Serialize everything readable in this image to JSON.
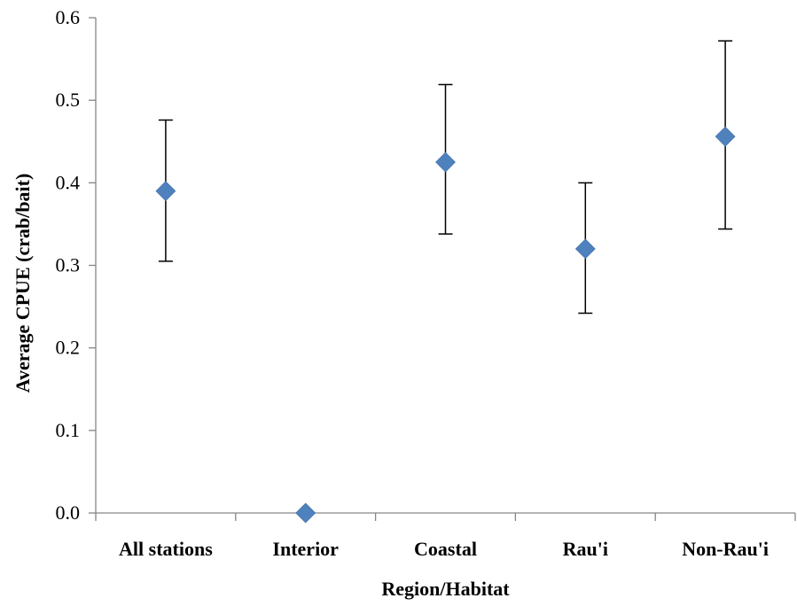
{
  "chart_data": {
    "type": "scatter",
    "title": "",
    "xlabel": "Region/Habitat",
    "ylabel": "Average CPUE (crab/bait)",
    "categories": [
      "All stations",
      "Interior",
      "Coastal",
      "Rau'i",
      "Non-Rau'i"
    ],
    "series": [
      {
        "values": [
          0.39,
          0.0,
          0.425,
          0.32,
          0.456
        ],
        "error_low": [
          0.305,
          null,
          0.338,
          0.242,
          0.344
        ],
        "error_high": [
          0.476,
          null,
          0.519,
          0.4,
          0.572
        ]
      }
    ],
    "ylim": [
      0,
      0.6
    ],
    "yticks": [
      "0.0",
      "0.1",
      "0.2",
      "0.3",
      "0.4",
      "0.5",
      "0.6"
    ],
    "grid": false,
    "legend": "none",
    "marker": "diamond",
    "marker_color": "#4F81BD"
  }
}
